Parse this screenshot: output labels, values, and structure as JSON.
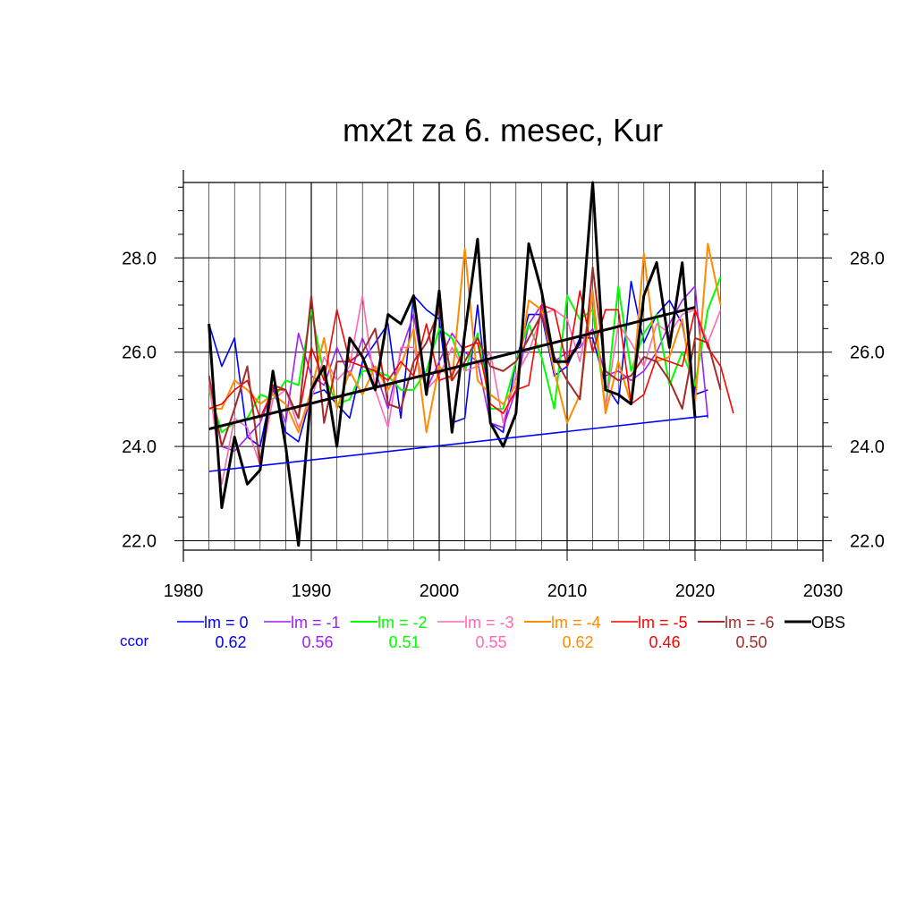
{
  "chart_data": {
    "type": "line",
    "title": "mx2t za 6. mesec, Kur",
    "xlabel": "",
    "ylabel": "",
    "xlim": [
      1980,
      2030
    ],
    "ylim": [
      21.8,
      29.6
    ],
    "x_ticks": [
      1980,
      1990,
      2000,
      2010,
      2020,
      2030
    ],
    "y_ticks": [
      22.0,
      24.0,
      26.0,
      28.0
    ],
    "y_tick_labels": [
      "22.0",
      "24.0",
      "26.0",
      "28.0"
    ],
    "grid": true,
    "legend_position": "bottom",
    "ccor_label": "ccor",
    "series": [
      {
        "name": "lm = 0",
        "color": "#0000ff",
        "width": 1.6,
        "ccor": "0.62",
        "x_start": 1982,
        "values": [
          26.6,
          25.7,
          26.3,
          24.2,
          24.0,
          25.3,
          24.3,
          24.1,
          25.1,
          25.2,
          24.9,
          24.6,
          25.8,
          26.2,
          26.6,
          24.6,
          27.2,
          26.9,
          26.7,
          24.5,
          24.6,
          27.0,
          24.5,
          24.3,
          25.8,
          26.8,
          26.8,
          25.5,
          25.7,
          26.3,
          26.3,
          25.3,
          24.9,
          27.5,
          26.2,
          26.8,
          27.1,
          26.6,
          25.1,
          25.2
        ]
      },
      {
        "name": "lm = -1",
        "color": "#a020f0",
        "width": 1.6,
        "ccor": "0.56",
        "x_start": 1982,
        "values": [
          25.3,
          24.0,
          23.9,
          24.2,
          24.5,
          25.2,
          24.5,
          26.4,
          25.5,
          25.3,
          26.1,
          25.5,
          26.3,
          25.6,
          24.8,
          26.0,
          26.8,
          25.2,
          25.8,
          26.4,
          26.0,
          25.8,
          24.5,
          24.4,
          25.2,
          26.6,
          27.0,
          25.8,
          26.0,
          26.1,
          26.5,
          25.5,
          25.6,
          25.4,
          25.6,
          26.0,
          26.6,
          27.1,
          27.4,
          24.6
        ]
      },
      {
        "name": "lm = -2",
        "color": "#00ff00",
        "width": 2.0,
        "ccor": "0.51",
        "x_start": 1982,
        "values": [
          25.2,
          24.3,
          24.5,
          24.6,
          25.1,
          25.0,
          25.4,
          25.3,
          26.9,
          25.5,
          24.9,
          25.0,
          25.6,
          25.6,
          25.5,
          25.2,
          25.2,
          25.6,
          26.5,
          26.3,
          25.6,
          26.4,
          24.8,
          24.8,
          25.8,
          26.6,
          25.9,
          24.8,
          27.2,
          26.7,
          26.9,
          24.8,
          27.4,
          25.6,
          26.4,
          26.8,
          25.3,
          26.0,
          25.3,
          26.9,
          27.6
        ]
      },
      {
        "name": "lm = -3",
        "color": "#ff69b4",
        "width": 1.6,
        "ccor": "0.55",
        "x_start": 1982,
        "values": [
          25.4,
          23.2,
          24.6,
          24.4,
          23.6,
          25.0,
          25.2,
          24.4,
          25.0,
          25.9,
          25.4,
          25.7,
          27.2,
          25.2,
          24.4,
          26.1,
          26.1,
          25.2,
          25.5,
          26.1,
          25.6,
          25.7,
          26.0,
          24.5,
          25.5,
          26.0,
          26.8,
          26.9,
          26.7,
          25.8,
          27.2,
          24.8,
          26.6,
          26.2,
          25.7,
          26.6,
          26.4,
          26.8,
          26.9,
          26.2,
          26.9
        ]
      },
      {
        "name": "lm = -4",
        "color": "#ff8c00",
        "width": 2.0,
        "ccor": "0.62",
        "x_start": 1982,
        "values": [
          24.8,
          24.8,
          25.4,
          25.2,
          24.9,
          25.1,
          24.9,
          24.3,
          25.2,
          26.3,
          24.8,
          25.6,
          25.1,
          25.7,
          25.2,
          25.7,
          26.5,
          24.3,
          25.7,
          25.4,
          28.2,
          25.4,
          25.1,
          24.9,
          25.3,
          27.1,
          26.9,
          25.6,
          24.5,
          25.1,
          27.3,
          24.7,
          25.8,
          24.9,
          28.1,
          25.8,
          25.9,
          26.7,
          24.9,
          28.3,
          27.0
        ]
      },
      {
        "name": "lm = -5",
        "color": "#ff0000",
        "width": 1.6,
        "ccor": "0.46",
        "x_start": 1982,
        "values": [
          24.8,
          24.9,
          25.2,
          25.4,
          24.6,
          25.2,
          25.2,
          24.6,
          26.1,
          25.4,
          26.9,
          25.8,
          25.7,
          25.6,
          25.4,
          25.8,
          25.5,
          26.6,
          25.4,
          25.5,
          26.1,
          26.2,
          24.9,
          24.7,
          25.2,
          25.3,
          27.0,
          26.9,
          25.7,
          27.3,
          26.0,
          26.9,
          26.9,
          24.9,
          25.1,
          25.9,
          25.8,
          25.7,
          26.9,
          26.1,
          25.7,
          24.7
        ]
      },
      {
        "name": "lm = -6",
        "color": "#a52a2a",
        "width": 2.0,
        "ccor": "0.50",
        "x_start": 1982,
        "values": [
          25.5,
          24.0,
          24.8,
          25.7,
          23.6,
          25.3,
          25.2,
          24.6,
          27.2,
          24.5,
          25.8,
          25.8,
          26.0,
          26.5,
          24.9,
          24.8,
          25.8,
          26.2,
          26.9,
          25.4,
          25.8,
          26.3,
          25.7,
          25.6,
          25.8,
          26.3,
          26.8,
          25.9,
          25.4,
          25.0,
          27.8,
          25.6,
          25.4,
          25.5,
          25.9,
          25.8,
          25.4,
          24.8,
          26.3,
          26.2,
          25.2
        ]
      },
      {
        "name": "OBS",
        "color": "#000000",
        "width": 3.0,
        "ccor": "",
        "x_start": 1982,
        "values": [
          26.6,
          22.7,
          24.2,
          23.2,
          23.5,
          25.6,
          24.0,
          21.9,
          25.2,
          25.7,
          24.0,
          26.3,
          25.9,
          25.2,
          26.8,
          26.6,
          27.2,
          25.1,
          27.3,
          24.3,
          26.4,
          28.4,
          24.5,
          24.0,
          24.7,
          28.3,
          27.3,
          25.8,
          25.8,
          26.2,
          29.6,
          25.2,
          25.1,
          24.9,
          27.2,
          27.9,
          26.1,
          27.9,
          24.6
        ]
      }
    ],
    "trend_lines": [
      {
        "name": "OBS trend",
        "color": "#000000",
        "width": 3.0,
        "x": [
          1982,
          2020
        ],
        "y": [
          24.37,
          26.95
        ]
      },
      {
        "name": "lm = 0 trend",
        "color": "#0000ff",
        "width": 1.6,
        "x": [
          1982,
          2021
        ],
        "y": [
          23.47,
          24.65
        ]
      }
    ]
  }
}
